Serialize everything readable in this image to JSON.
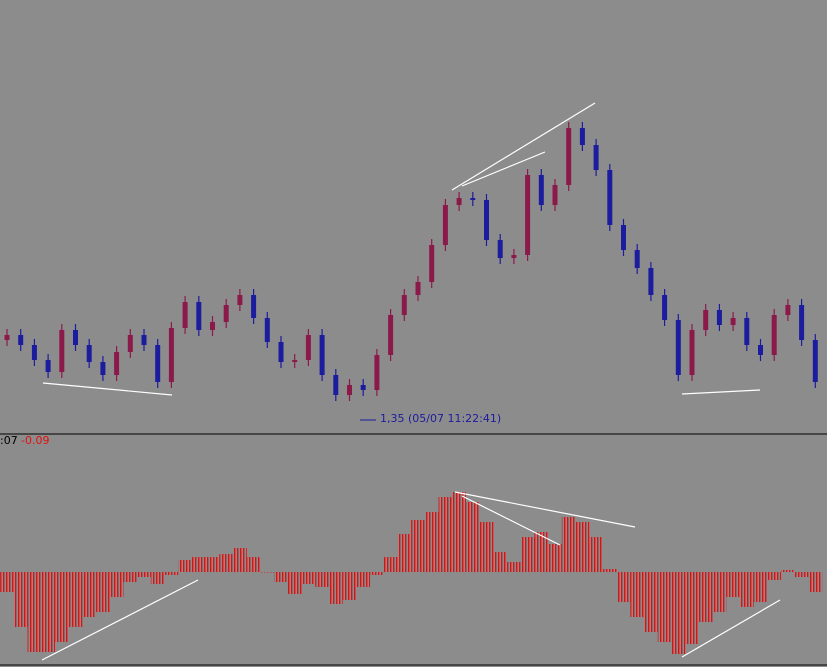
{
  "chart_data": [
    {
      "type": "candlestick",
      "annotation": "1,35 (05/07 11:22:41)",
      "up_color": "#8b1a4a",
      "down_color": "#1c1c9e",
      "ylim": [
        0,
        432
      ],
      "open": [
        92,
        97,
        87,
        72,
        60,
        102,
        87,
        70,
        57,
        80,
        97,
        87,
        50,
        104,
        130,
        102,
        110,
        127,
        137,
        114,
        90,
        70,
        72,
        97,
        57,
        37,
        47,
        42,
        77,
        117,
        137,
        150,
        187,
        227,
        234,
        232,
        192,
        174,
        177,
        257,
        227,
        247,
        304,
        287,
        262,
        207,
        182,
        164,
        137,
        112,
        57,
        102,
        122,
        107,
        114,
        87,
        77,
        117,
        127,
        92
      ],
      "high": [
        103,
        103,
        93,
        78,
        108,
        108,
        93,
        76,
        86,
        103,
        103,
        93,
        110,
        136,
        136,
        116,
        133,
        143,
        143,
        120,
        96,
        78,
        103,
        103,
        63,
        53,
        53,
        83,
        123,
        143,
        156,
        193,
        233,
        240,
        240,
        238,
        198,
        183,
        263,
        263,
        253,
        310,
        310,
        293,
        268,
        213,
        188,
        170,
        143,
        118,
        108,
        128,
        128,
        120,
        120,
        93,
        123,
        133,
        133,
        98
      ],
      "low": [
        86,
        81,
        66,
        54,
        54,
        81,
        64,
        51,
        51,
        74,
        81,
        44,
        44,
        98,
        96,
        96,
        104,
        121,
        108,
        84,
        64,
        64,
        66,
        51,
        31,
        31,
        36,
        36,
        71,
        111,
        131,
        144,
        181,
        221,
        226,
        186,
        168,
        168,
        171,
        221,
        221,
        241,
        281,
        256,
        201,
        176,
        158,
        131,
        106,
        51,
        51,
        96,
        101,
        101,
        81,
        71,
        71,
        111,
        86,
        44
      ],
      "close": [
        97,
        87,
        72,
        60,
        102,
        87,
        70,
        57,
        80,
        97,
        87,
        50,
        104,
        130,
        102,
        110,
        127,
        137,
        114,
        90,
        70,
        72,
        97,
        57,
        37,
        47,
        42,
        77,
        117,
        137,
        150,
        187,
        227,
        234,
        232,
        192,
        174,
        177,
        257,
        227,
        247,
        304,
        287,
        262,
        207,
        182,
        164,
        137,
        112,
        57,
        102,
        122,
        107,
        114,
        87,
        77,
        117,
        127,
        92,
        50
      ]
    },
    {
      "type": "histogram",
      "label": ":07",
      "value_text": "-0.09",
      "color": "#e01010",
      "ylim": [
        -95,
        137
      ],
      "values": [
        -20,
        -55,
        -80,
        -80,
        -70,
        -55,
        -45,
        -40,
        -25,
        -10,
        -5,
        -12,
        -3,
        12,
        15,
        15,
        18,
        24,
        15,
        0,
        -10,
        -22,
        -12,
        -15,
        -32,
        -28,
        -15,
        -3,
        15,
        38,
        52,
        60,
        75,
        80,
        70,
        50,
        20,
        10,
        35,
        40,
        28,
        55,
        50,
        35,
        3,
        -30,
        -45,
        -60,
        -70,
        -82,
        -72,
        -50,
        -40,
        -25,
        -35,
        -30,
        -8,
        2,
        -5,
        -20
      ]
    }
  ]
}
